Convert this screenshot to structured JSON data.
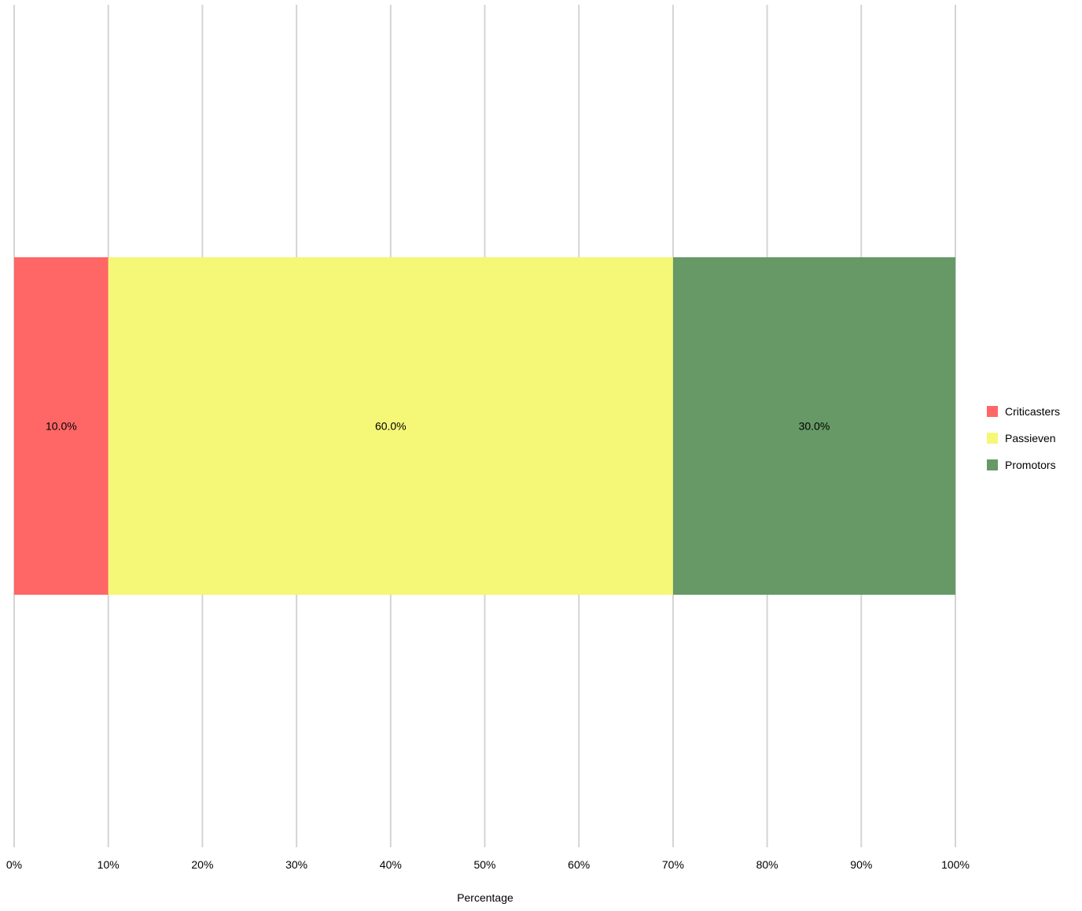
{
  "chart_data": {
    "type": "bar",
    "orientation": "horizontal",
    "stacked": true,
    "categories": [
      ""
    ],
    "series": [
      {
        "name": "Criticasters",
        "values": [
          10.0
        ],
        "color": "#ff6666",
        "label": "10.0%"
      },
      {
        "name": "Passieven",
        "values": [
          60.0
        ],
        "color": "#f5f777",
        "label": "60.0%"
      },
      {
        "name": "Promotors",
        "values": [
          30.0
        ],
        "color": "#669966",
        "label": "30.0%"
      }
    ],
    "title": "",
    "xlabel": "Percentage",
    "ylabel": "",
    "xlim": [
      0,
      100
    ],
    "xticks": [
      0,
      10,
      20,
      30,
      40,
      50,
      60,
      70,
      80,
      90,
      100
    ],
    "xtick_labels": [
      "0%",
      "10%",
      "20%",
      "30%",
      "40%",
      "50%",
      "60%",
      "70%",
      "80%",
      "90%",
      "100%"
    ],
    "grid": true,
    "grid_color": "#d4d4d4",
    "legend_position": "right"
  }
}
